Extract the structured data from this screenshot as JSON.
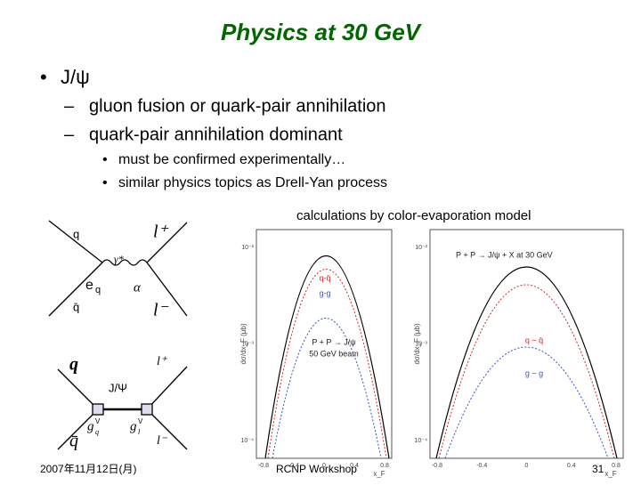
{
  "title": "Physics at 30 GeV",
  "bullet": "J/ψ",
  "sub_items": [
    "gluon fusion or quark-pair annihilation",
    "quark-pair annihilation dominant"
  ],
  "sub_sub_items": [
    "must be confirmed experimentally…",
    "similar physics topics as Drell-Yan process"
  ],
  "caption": "calculations by color-evaporation model",
  "diagram_top": {
    "q": "q",
    "q_bar": "q̄",
    "l_plus": "l⁺",
    "l_minus": "l⁻",
    "photon": "γ*",
    "charge": "e",
    "charge_sub": "q",
    "alpha": "α"
  },
  "diagram_bottom": {
    "q": "q",
    "q_bar": "q̄",
    "l_plus": "l⁺",
    "l_minus": "l⁻",
    "meson": "J/Ψ",
    "gq": "g",
    "gq_sub": "q",
    "gq_sup": "V",
    "gl": "g",
    "gl_sub": "l",
    "gl_sup": "V"
  },
  "plots": [
    {
      "annotation": [
        "P + P → J/ψ",
        "50 GeV beam"
      ],
      "legend": [
        "q-q̄",
        "g-g"
      ],
      "y_label": "dσ/dx_F (μb)",
      "x_label": "x_F",
      "yticks": [
        "10⁻²",
        "10⁻³",
        "10⁻⁴"
      ],
      "xticks": [
        "-0.8",
        "-0.4",
        "0",
        "0.4",
        "0.8"
      ]
    },
    {
      "annotation": [
        "P + P → J/ψ + X  at 30 GeV"
      ],
      "legend": [
        "q − q̄",
        "g − g"
      ],
      "y_label": "dσ/dx_F (μb)",
      "x_label": "x_F",
      "yticks": [
        "10⁻²",
        "10⁻³",
        "10⁻⁴"
      ],
      "xticks": [
        "-0.8",
        "-0.4",
        "0",
        "0.4",
        "0.8"
      ]
    }
  ],
  "footer": {
    "date": "2007年11月12日(月)",
    "venue": "RCNP Workshop",
    "page": "31"
  }
}
